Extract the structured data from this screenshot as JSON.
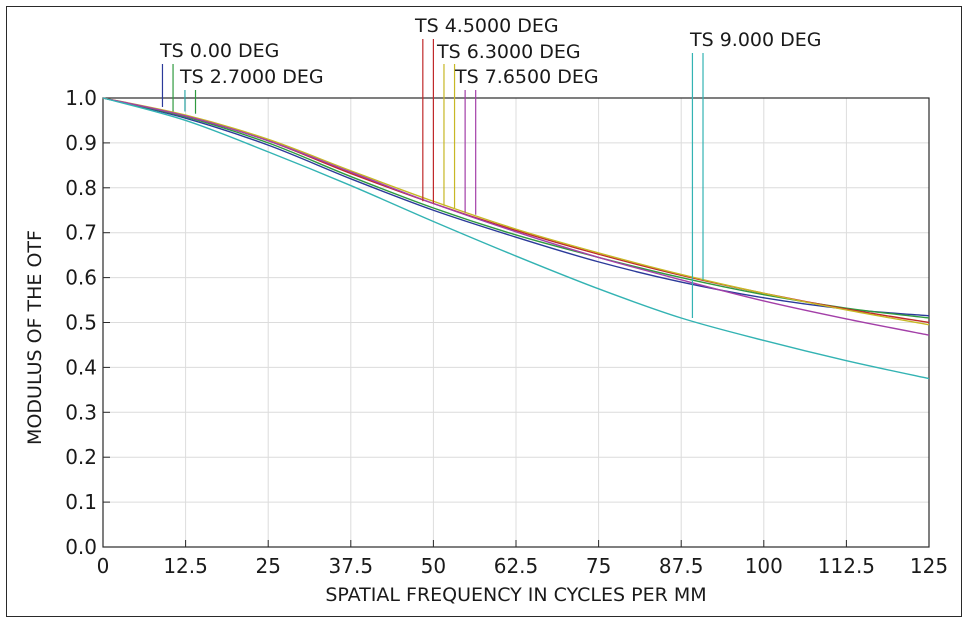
{
  "chart_data": {
    "type": "line",
    "title": "",
    "xlabel": "SPATIAL FREQUENCY IN CYCLES PER MM",
    "ylabel": "MODULUS OF THE OTF",
    "xlim": [
      0,
      125
    ],
    "ylim": [
      0.0,
      1.0
    ],
    "grid": true,
    "x_ticks": [
      "0",
      "12.5",
      "25",
      "37.5",
      "50",
      "62.5",
      "75",
      "87.5",
      "100",
      "112.5",
      "125"
    ],
    "y_ticks": [
      "0.0",
      "0.1",
      "0.2",
      "0.3",
      "0.4",
      "0.5",
      "0.6",
      "0.7",
      "0.8",
      "0.9",
      "1.0"
    ],
    "x": [
      0,
      12.5,
      25,
      37.5,
      50,
      62.5,
      75,
      87.5,
      100,
      112.5,
      125
    ],
    "series": [
      {
        "name": "TS 0.00 DEG",
        "color": "#2b3a9a",
        "values": [
          1.0,
          0.955,
          0.895,
          0.82,
          0.75,
          0.69,
          0.635,
          0.59,
          0.555,
          0.53,
          0.515
        ]
      },
      {
        "name": "TS 2.7000 DEG",
        "color": "#2f9a3f",
        "values": [
          1.0,
          0.958,
          0.9,
          0.825,
          0.755,
          0.695,
          0.645,
          0.6,
          0.562,
          0.532,
          0.51
        ]
      },
      {
        "name": "TS 4.5000 DEG",
        "color": "#c0292b",
        "values": [
          1.0,
          0.96,
          0.905,
          0.832,
          0.765,
          0.705,
          0.652,
          0.605,
          0.565,
          0.53,
          0.5
        ]
      },
      {
        "name": "TS 6.3000 DEG",
        "color": "#c7b825",
        "values": [
          1.0,
          0.962,
          0.908,
          0.838,
          0.77,
          0.708,
          0.655,
          0.607,
          0.565,
          0.528,
          0.495
        ]
      },
      {
        "name": "TS 7.6500 DEG",
        "color": "#a33fa8",
        "values": [
          1.0,
          0.96,
          0.905,
          0.835,
          0.765,
          0.702,
          0.645,
          0.595,
          0.548,
          0.508,
          0.472
        ]
      },
      {
        "name": "TS 9.000 DEG",
        "color": "#33b3b3",
        "values": [
          1.0,
          0.95,
          0.88,
          0.805,
          0.725,
          0.648,
          0.575,
          0.51,
          0.46,
          0.415,
          0.375
        ]
      }
    ],
    "legend": [
      {
        "label": "TS 0.00 DEG",
        "markers": [
          {
            "x": 9.0,
            "y": 0.98,
            "color": "#2b3a9a"
          },
          {
            "x": 10.6,
            "y": 0.97,
            "color": "#2f9a3f"
          }
        ]
      },
      {
        "label": "TS 2.7000 DEG",
        "markers": [
          {
            "x": 12.4,
            "y": 0.97,
            "color": "#2fa8a8"
          },
          {
            "x": 14.0,
            "y": 0.965,
            "color": "#2f9a3f"
          }
        ]
      },
      {
        "label": "TS 4.5000 DEG",
        "markers": [
          {
            "x": 48.4,
            "y": 0.77,
            "color": "#c0292b"
          },
          {
            "x": 50.0,
            "y": 0.765,
            "color": "#c0292b"
          }
        ]
      },
      {
        "label": "TS 6.3000 DEG",
        "markers": [
          {
            "x": 51.6,
            "y": 0.76,
            "color": "#c7b825"
          },
          {
            "x": 53.2,
            "y": 0.755,
            "color": "#c7b825"
          }
        ]
      },
      {
        "label": "TS 7.6500 DEG",
        "markers": [
          {
            "x": 54.8,
            "y": 0.745,
            "color": "#a33fa8"
          },
          {
            "x": 56.4,
            "y": 0.74,
            "color": "#a33fa8"
          }
        ]
      },
      {
        "label": "TS 9.000 DEG",
        "markers": [
          {
            "x": 89.2,
            "y": 0.51,
            "color": "#33b3b3"
          },
          {
            "x": 90.8,
            "y": 0.595,
            "color": "#33b3b3"
          }
        ]
      }
    ]
  }
}
